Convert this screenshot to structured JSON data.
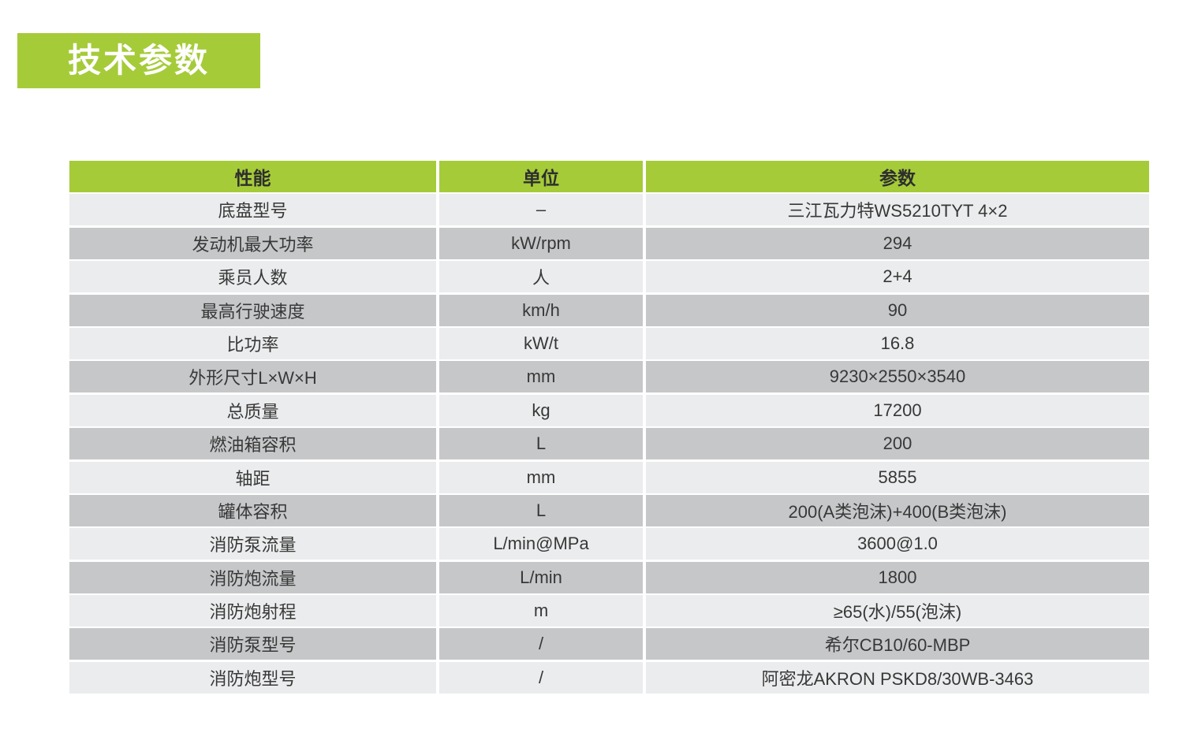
{
  "page": {
    "title_badge": "技术参数"
  },
  "colors": {
    "green": "#a5cb39",
    "row_light": "#ebeced",
    "row_dark": "#c6c7c9",
    "text": "#383838"
  },
  "table": {
    "columns": [
      "性能",
      "单位",
      "参数"
    ],
    "rows": [
      {
        "property": "底盘型号",
        "unit": "–",
        "value": "三江瓦力特WS5210TYT 4×2"
      },
      {
        "property": "发动机最大功率",
        "unit": "kW/rpm",
        "value": "294"
      },
      {
        "property": "乘员人数",
        "unit": "人",
        "value": "2+4"
      },
      {
        "property": "最高行驶速度",
        "unit": "km/h",
        "value": "90"
      },
      {
        "property": "比功率",
        "unit": "kW/t",
        "value": "16.8"
      },
      {
        "property": "外形尺寸L×W×H",
        "unit": "mm",
        "value": "9230×2550×3540"
      },
      {
        "property": "总质量",
        "unit": "kg",
        "value": "17200"
      },
      {
        "property": "燃油箱容积",
        "unit": "L",
        "value": "200"
      },
      {
        "property": "轴距",
        "unit": "mm",
        "value": "5855"
      },
      {
        "property": "罐体容积",
        "unit": "L",
        "value": "200(A类泡沫)+400(B类泡沫)"
      },
      {
        "property": "消防泵流量",
        "unit": "L/min@MPa",
        "value": "3600@1.0"
      },
      {
        "property": "消防炮流量",
        "unit": "L/min",
        "value": "1800"
      },
      {
        "property": "消防炮射程",
        "unit": "m",
        "value": "≥65(水)/55(泡沫)"
      },
      {
        "property": "消防泵型号",
        "unit": "/",
        "value": "希尔CB10/60-MBP"
      },
      {
        "property": "消防炮型号",
        "unit": "/",
        "value": "阿密龙AKRON PSKD8/30WB-3463"
      }
    ]
  }
}
